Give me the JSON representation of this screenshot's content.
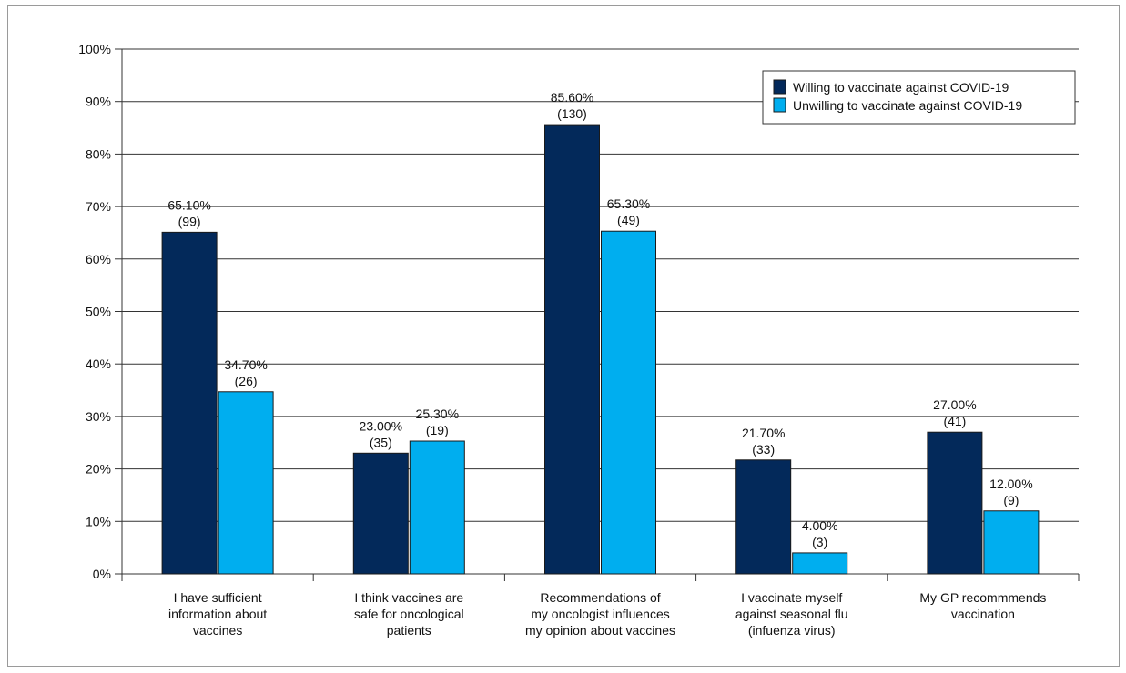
{
  "chart_data": {
    "type": "bar",
    "categories": [
      [
        "I have sufficient",
        "information about",
        "vaccines"
      ],
      [
        "I think vaccines are",
        "safe for oncological",
        "patients"
      ],
      [
        "Recommendations of",
        "my oncologist influences",
        "my opinion about vaccines"
      ],
      [
        "I vaccinate myself",
        "against seasonal flu",
        "(infuenza virus)"
      ],
      [
        "My GP recommmends",
        "vaccination"
      ]
    ],
    "series": [
      {
        "name": "Willing to vaccinate against COVID-19",
        "color": "#03295a",
        "values": [
          65.1,
          23.0,
          85.6,
          21.7,
          27.0
        ],
        "labels": [
          "65.10%",
          "23.00%",
          "85.60%",
          "21.70%",
          "27.00%"
        ],
        "counts": [
          "(99)",
          "(35)",
          "(130)",
          "(33)",
          "(41)"
        ]
      },
      {
        "name": "Unwilling to vaccinate against COVID-19",
        "color": "#00aeef",
        "values": [
          34.7,
          25.3,
          65.3,
          4.0,
          12.0
        ],
        "labels": [
          "34.70%",
          "25.30%",
          "65.30%",
          "4.00%",
          "12.00%"
        ],
        "counts": [
          "(26)",
          "(19)",
          "(49)",
          "(3)",
          "(9)"
        ]
      }
    ],
    "yticks": [
      "0%",
      "10%",
      "20%",
      "30%",
      "40%",
      "50%",
      "60%",
      "70%",
      "80%",
      "90%",
      "100%"
    ],
    "ylim": [
      0,
      100
    ],
    "grid": true,
    "legend": "top-right",
    "title": "",
    "xlabel": "",
    "ylabel": ""
  }
}
